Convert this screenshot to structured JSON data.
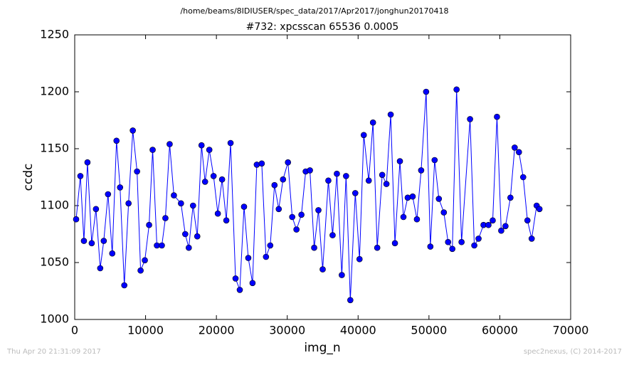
{
  "chart_data": {
    "type": "line",
    "suptitle": "/home/beams/8IDIUSER/spec_data/2017/Apr2017/jonghun20170418",
    "title": "#732: xpcsscan 65536 0.0005",
    "x_label": "img_n",
    "y_label": "ccdc",
    "footer_left": "Thu Apr 20 21:31:09 2017",
    "footer_right": "spec2nexus, (C) 2014-2017",
    "x": [
      200,
      800,
      1300,
      1800,
      2400,
      3000,
      3600,
      4100,
      4700,
      5300,
      5900,
      6400,
      7000,
      7600,
      8200,
      8800,
      9300,
      9900,
      10500,
      11000,
      11600,
      12300,
      12800,
      13400,
      14000,
      15000,
      15600,
      16100,
      16700,
      17300,
      17900,
      18400,
      19000,
      19600,
      20200,
      20800,
      21400,
      22000,
      22700,
      23300,
      23900,
      24500,
      25100,
      25700,
      26400,
      27000,
      27600,
      28200,
      28800,
      29400,
      30100,
      30700,
      31300,
      32000,
      32600,
      33200,
      33800,
      34400,
      35000,
      35800,
      36400,
      37000,
      37700,
      38300,
      38900,
      39600,
      40200,
      40800,
      41500,
      42100,
      42700,
      43400,
      44000,
      44600,
      45200,
      45900,
      46400,
      47000,
      47700,
      48300,
      48900,
      49600,
      50200,
      50800,
      51400,
      52100,
      52700,
      53300,
      53900,
      54600,
      55800,
      56400,
      57000,
      57700,
      58400,
      59000,
      59600,
      60200,
      60800,
      61500,
      62100,
      62700,
      63300,
      63900,
      64500,
      65200,
      65600
    ],
    "series": [
      {
        "name": "ccdc",
        "color": "#0000ff",
        "values": [
          1088,
          1126,
          1069,
          1138,
          1067,
          1097,
          1045,
          1069,
          1110,
          1058,
          1157,
          1116,
          1030,
          1102,
          1166,
          1130,
          1043,
          1052,
          1083,
          1149,
          1065,
          1065,
          1089,
          1154,
          1109,
          1102,
          1075,
          1063,
          1100,
          1073,
          1153,
          1121,
          1149,
          1126,
          1093,
          1123,
          1087,
          1155,
          1036,
          1026,
          1099,
          1054,
          1032,
          1136,
          1137,
          1055,
          1065,
          1118,
          1097,
          1123,
          1138,
          1090,
          1079,
          1092,
          1130,
          1131,
          1063,
          1096,
          1044,
          1122,
          1074,
          1128,
          1039,
          1126,
          1017,
          1111,
          1053,
          1162,
          1122,
          1173,
          1063,
          1127,
          1119,
          1180,
          1067,
          1139,
          1090,
          1107,
          1108,
          1088,
          1131,
          1200,
          1064,
          1140,
          1106,
          1094,
          1068,
          1062,
          1202,
          1068,
          1176,
          1065,
          1071,
          1083,
          1083,
          1087,
          1178,
          1078,
          1082,
          1107,
          1151,
          1147,
          1125,
          1087,
          1071,
          1100,
          1097
        ]
      }
    ],
    "xlim": [
      0,
      70000
    ],
    "xticks": [
      0,
      10000,
      20000,
      30000,
      40000,
      50000,
      60000,
      70000
    ],
    "ylim": [
      1000,
      1250
    ],
    "yticks": [
      1000,
      1050,
      1100,
      1150,
      1200,
      1250
    ]
  }
}
